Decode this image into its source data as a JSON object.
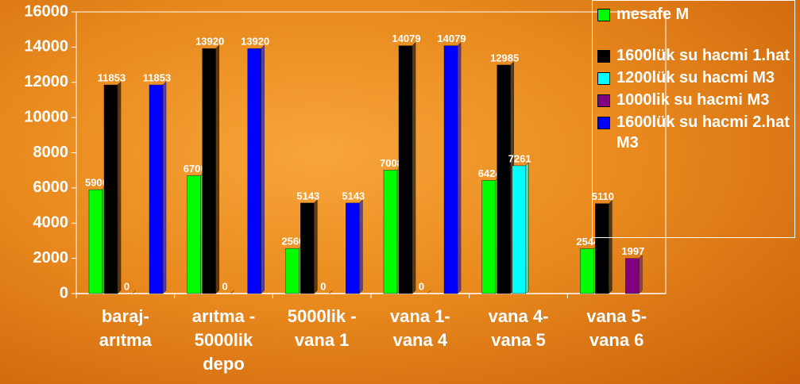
{
  "chart_data": {
    "type": "bar",
    "categories": [
      "baraj- arıtma",
      "arıtma - 5000lik depo",
      "5000lik - vana 1",
      "vana 1- vana 4",
      "vana 4- vana 5",
      "vana 5- vana 6"
    ],
    "series": [
      {
        "name": "mesafe M",
        "color": "#00ff00",
        "values": [
          5900,
          6700,
          2560,
          7008,
          6424,
          2544
        ]
      },
      {
        "name": "1600lük su hacmi 1.hat",
        "color": "#000000",
        "values": [
          11853,
          13920,
          5143,
          14079,
          12985,
          5110
        ]
      },
      {
        "name": "1200lük su hacmi M3",
        "color": "#00ffff",
        "values": [
          0,
          0,
          0,
          0,
          7261,
          null
        ]
      },
      {
        "name": "1000lik su hacmi M3",
        "color": "#800080",
        "values": [
          null,
          null,
          null,
          null,
          null,
          1997
        ]
      },
      {
        "name": "1600lük su hacmi 2.hat M3",
        "color": "#0000ff",
        "values": [
          11853,
          13920,
          5143,
          14079,
          null,
          null
        ]
      }
    ],
    "ylim": [
      0,
      16000
    ],
    "yticks": [
      0,
      2000,
      4000,
      6000,
      8000,
      10000,
      12000,
      14000,
      16000
    ]
  }
}
